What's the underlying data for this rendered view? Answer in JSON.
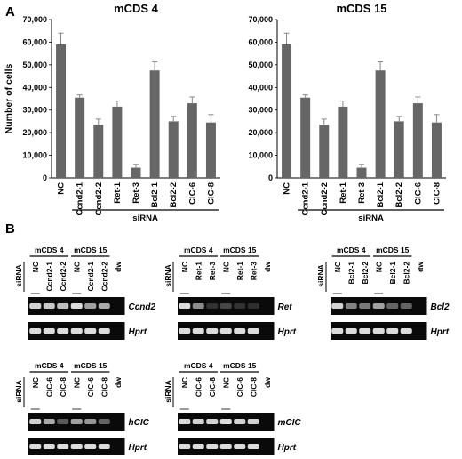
{
  "panel_labels": {
    "a": "A",
    "b": "B"
  },
  "chart_data": [
    {
      "type": "bar",
      "title": "mCDS 4",
      "ylabel": "Number of cells",
      "xlabel": "",
      "group_label": "siRNA",
      "ylim": [
        0,
        70000
      ],
      "yticks": [
        "0",
        "10,000",
        "20,000",
        "30,000",
        "40,000",
        "50,000",
        "60,000",
        "70,000"
      ],
      "categories": [
        "NC",
        "Ccnd2-1",
        "Ccnd2-2",
        "Ret-1",
        "Ret-3",
        "Bcl2-1",
        "Bcl2-2",
        "CIC-6",
        "CIC-8"
      ],
      "values": [
        59000,
        35500,
        23500,
        31500,
        4500,
        47500,
        25000,
        33000,
        24500
      ],
      "errors": [
        5000,
        1200,
        2500,
        2500,
        1500,
        3800,
        2200,
        2800,
        3500
      ],
      "bar_color": "#666666"
    },
    {
      "type": "bar",
      "title": "mCDS 15",
      "ylabel": "",
      "xlabel": "",
      "group_label": "siRNA",
      "ylim": [
        0,
        70000
      ],
      "yticks": [
        "0",
        "10,000",
        "20,000",
        "30,000",
        "40,000",
        "50,000",
        "60,000",
        "70,000"
      ],
      "categories": [
        "NC",
        "Ccnd2-1",
        "Ccnd2-2",
        "Ret-1",
        "Ret-3",
        "Bcl2-1",
        "Bcl2-2",
        "CIC-6",
        "CIC-8"
      ],
      "values": [
        59000,
        35500,
        23500,
        31500,
        4500,
        47500,
        25000,
        33000,
        24500
      ],
      "errors": [
        5000,
        1200,
        2500,
        2500,
        1500,
        3800,
        2200,
        2800,
        3500
      ],
      "bar_color": "#666666"
    }
  ],
  "gels": [
    {
      "group_labels": [
        "mCDS 4",
        "mCDS 15"
      ],
      "row_label": "siRNA",
      "lanes": [
        "NC",
        "Ccnd2-1",
        "Ccnd2-2",
        "NC",
        "Ccnd2-1",
        "Ccnd2-2",
        "dw"
      ],
      "genes": [
        "Ccnd2",
        "Hprt"
      ],
      "band_intensity": [
        [
          0.85,
          0.8,
          0.75,
          0.9,
          0.6,
          0.65,
          0
        ],
        [
          0.9,
          0.9,
          0.9,
          0.9,
          0.9,
          0.9,
          0
        ]
      ]
    },
    {
      "group_labels": [
        "mCDS 4",
        "mCDS 15"
      ],
      "row_label": "siRNA",
      "lanes": [
        "NC",
        "Ret-1",
        "Ret-3",
        "NC",
        "Ret-1",
        "Ret-3",
        "dw"
      ],
      "genes": [
        "Ret",
        "Hprt"
      ],
      "band_intensity": [
        [
          0.9,
          0.5,
          0.05,
          0.15,
          0.05,
          0.03,
          0
        ],
        [
          0.9,
          0.9,
          0.9,
          0.9,
          0.9,
          0.9,
          0
        ]
      ]
    },
    {
      "group_labels": [
        "mCDS 4",
        "mCDS 15"
      ],
      "row_label": "siRNA",
      "lanes": [
        "NC",
        "Bcl2-1",
        "Bcl2-2",
        "NC",
        "Bcl2-1",
        "Bcl2-2",
        "dw"
      ],
      "genes": [
        "Bcl2",
        "Hprt"
      ],
      "band_intensity": [
        [
          0.85,
          0.45,
          0.4,
          0.6,
          0.3,
          0.3,
          0
        ],
        [
          0.9,
          0.9,
          0.9,
          0.9,
          0.9,
          0.9,
          0
        ]
      ]
    },
    {
      "group_labels": [
        "mCDS 4",
        "mCDS 15"
      ],
      "row_label": "siRNA",
      "lanes": [
        "NC",
        "CIC-6",
        "CIC-8",
        "NC",
        "CIC-6",
        "CIC-8",
        "dw"
      ],
      "genes": [
        "hCIC",
        "Hprt"
      ],
      "band_intensity": [
        [
          0.85,
          0.65,
          0.25,
          0.6,
          0.55,
          0.3,
          0
        ],
        [
          0.9,
          0.9,
          0.9,
          0.9,
          0.9,
          0.9,
          0
        ]
      ]
    },
    {
      "group_labels": [
        "mCDS 4",
        "mCDS 15"
      ],
      "row_label": "siRNA",
      "lanes": [
        "NC",
        "CIC-6",
        "CIC-8",
        "NC",
        "CIC-6",
        "CIC-8",
        "dw"
      ],
      "genes": [
        "mCIC",
        "Hprt"
      ],
      "band_intensity": [
        [
          0.9,
          0.85,
          0.85,
          0.9,
          0.85,
          0.85,
          0
        ],
        [
          0.9,
          0.9,
          0.9,
          0.9,
          0.9,
          0.9,
          0
        ]
      ]
    }
  ]
}
